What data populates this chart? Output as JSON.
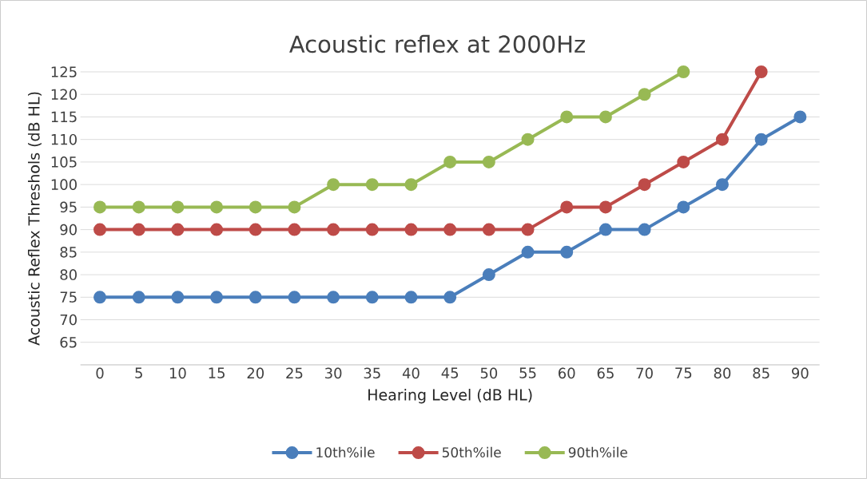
{
  "chart_data": {
    "type": "line",
    "title": "Acoustic reflex at 2000Hz",
    "xlabel": "Hearing Level (dB HL)",
    "ylabel": "Acoustic Reflex Threshols (dB HL)",
    "categories": [
      "0",
      "5",
      "10",
      "15",
      "20",
      "25",
      "30",
      "35",
      "40",
      "45",
      "50",
      "55",
      "60",
      "65",
      "70",
      "75",
      "80",
      "85",
      "90"
    ],
    "series": [
      {
        "name": "10th%ile",
        "color": "#4a7ebb",
        "values": [
          75,
          75,
          75,
          75,
          75,
          75,
          75,
          75,
          75,
          75,
          80,
          85,
          85,
          90,
          90,
          95,
          100,
          110,
          115
        ]
      },
      {
        "name": "50th%ile",
        "color": "#be4b48",
        "values": [
          90,
          90,
          90,
          90,
          90,
          90,
          90,
          90,
          90,
          90,
          90,
          90,
          95,
          95,
          100,
          105,
          110,
          125,
          null
        ]
      },
      {
        "name": "90th%ile",
        "color": "#98b954",
        "values": [
          95,
          95,
          95,
          95,
          95,
          95,
          100,
          100,
          100,
          105,
          105,
          110,
          115,
          115,
          120,
          125,
          null,
          null,
          null
        ]
      }
    ],
    "ylim": [
      60,
      125
    ],
    "yticks": [
      65,
      70,
      75,
      80,
      85,
      90,
      95,
      100,
      105,
      110,
      115,
      120,
      125
    ],
    "grid": "y",
    "legend": "bottom",
    "marker": "circle",
    "line_style": "solid"
  }
}
